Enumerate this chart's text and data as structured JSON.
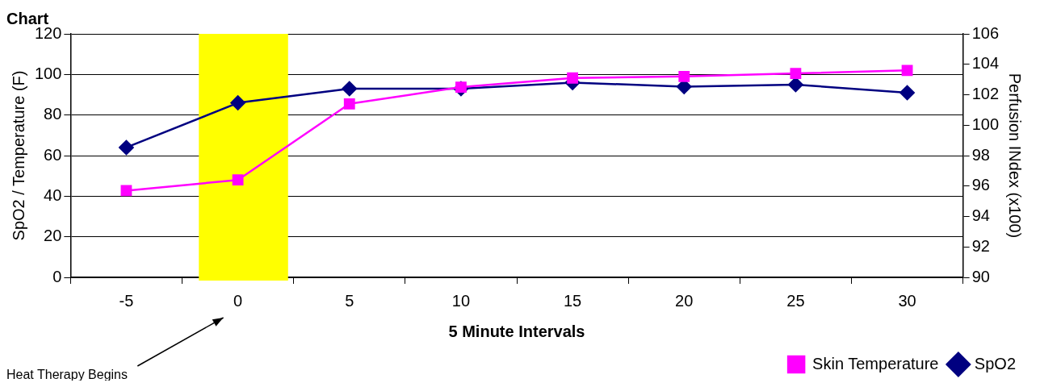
{
  "chart_data": {
    "type": "line",
    "title": "Chart",
    "xlabel": "5 Minute Intervals",
    "ylabel": "SpO2 / Temperature (F)",
    "y2label": "Perfusion INdex (x100)",
    "categories": [
      "-5",
      "0",
      "5",
      "10",
      "15",
      "20",
      "25",
      "30"
    ],
    "series": [
      {
        "name": "SpO2",
        "color": "#000080",
        "marker": "diamond",
        "values": [
          64,
          86,
          93,
          93,
          96,
          94,
          95,
          91
        ]
      },
      {
        "name": "Skin Temperature",
        "color": "#ff00ff",
        "marker": "square",
        "axis": "y2",
        "values": [
          95.7,
          96.4,
          101.4,
          102.5,
          103.1,
          103.2,
          103.4,
          103.6
        ]
      }
    ],
    "ylim": [
      0,
      120
    ],
    "yticks": [
      0,
      20,
      40,
      60,
      80,
      100,
      120
    ],
    "y2lim": [
      90,
      106
    ],
    "y2ticks": [
      90,
      92,
      94,
      96,
      98,
      100,
      102,
      104,
      106
    ],
    "grid": "y",
    "legend": "bottom right",
    "line_style": "solid",
    "bands": [
      {
        "axis": "x",
        "from": "0",
        "to": "0",
        "color": "#ffff00"
      }
    ],
    "annotations": [
      "Heat Therapy Begins"
    ]
  }
}
